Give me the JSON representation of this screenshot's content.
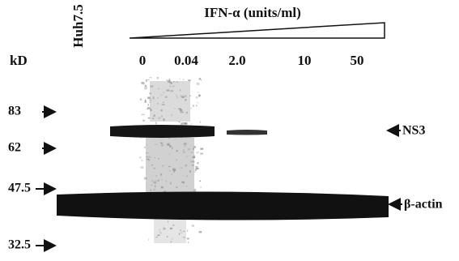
{
  "figure": {
    "sample_label": "Huh7.5",
    "treatment_label": "IFN-α (units/ml)",
    "unit_label": "kD",
    "lanes": [
      "0",
      "0.04",
      "2.0",
      "10",
      "50"
    ],
    "markers": [
      "83",
      "62",
      "47.5",
      "32.5"
    ],
    "bands": [
      "NS3",
      "β-actin"
    ]
  }
}
